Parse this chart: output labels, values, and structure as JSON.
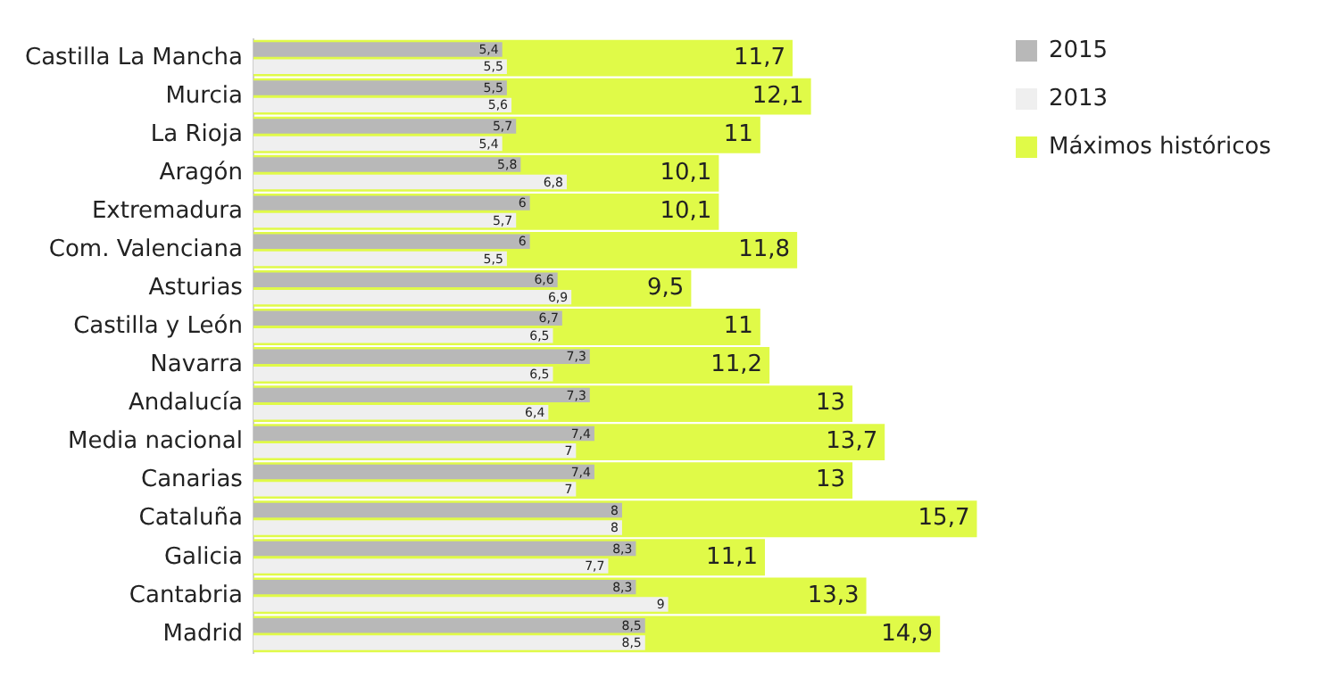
{
  "chart_data": {
    "type": "bar",
    "orientation": "horizontal",
    "categories": [
      "Castilla La Mancha",
      "Murcia",
      "La Rioja",
      "Aragón",
      "Extremadura",
      "Com. Valenciana",
      "Asturias",
      "Castilla y León",
      "Navarra",
      "Andalucía",
      "Media nacional",
      "Canarias",
      "Cataluña",
      "Galicia",
      "Cantabria",
      "Madrid"
    ],
    "series": [
      {
        "name": "2015",
        "color": "#b8b8b8",
        "values": [
          5.4,
          5.5,
          5.7,
          5.8,
          6,
          6,
          6.6,
          6.7,
          7.3,
          7.3,
          7.4,
          7.4,
          8,
          8.3,
          8.3,
          8.5
        ],
        "value_labels": [
          "5,4",
          "5,5",
          "5,7",
          "5,8",
          "6",
          "6",
          "6,6",
          "6,7",
          "7,3",
          "7,3",
          "7,4",
          "7,4",
          "8",
          "8,3",
          "8,3",
          "8,5"
        ]
      },
      {
        "name": "2013",
        "color": "#efefef",
        "values": [
          5.5,
          5.6,
          5.4,
          6.8,
          5.7,
          5.5,
          6.9,
          6.5,
          6.5,
          6.4,
          7,
          7,
          8,
          7.7,
          9,
          8.5
        ],
        "value_labels": [
          "5,5",
          "5,6",
          "5,4",
          "6,8",
          "5,7",
          "5,5",
          "6,9",
          "6,5",
          "6,5",
          "6,4",
          "7",
          "7",
          "8",
          "7,7",
          "9",
          "8,5"
        ]
      },
      {
        "name": "Máximos históricos",
        "color": "#e0fa48",
        "values": [
          11.7,
          12.1,
          11,
          10.1,
          10.1,
          11.8,
          9.5,
          11,
          11.2,
          13,
          13.7,
          13,
          15.7,
          11.1,
          13.3,
          14.9
        ],
        "value_labels": [
          "11,7",
          "12,1",
          "11",
          "10,1",
          "10,1",
          "11,8",
          "9,5",
          "11",
          "11,2",
          "13",
          "13,7",
          "13",
          "15,7",
          "11,1",
          "13,3",
          "14,9"
        ]
      }
    ],
    "legend": "top right",
    "grid": false
  }
}
